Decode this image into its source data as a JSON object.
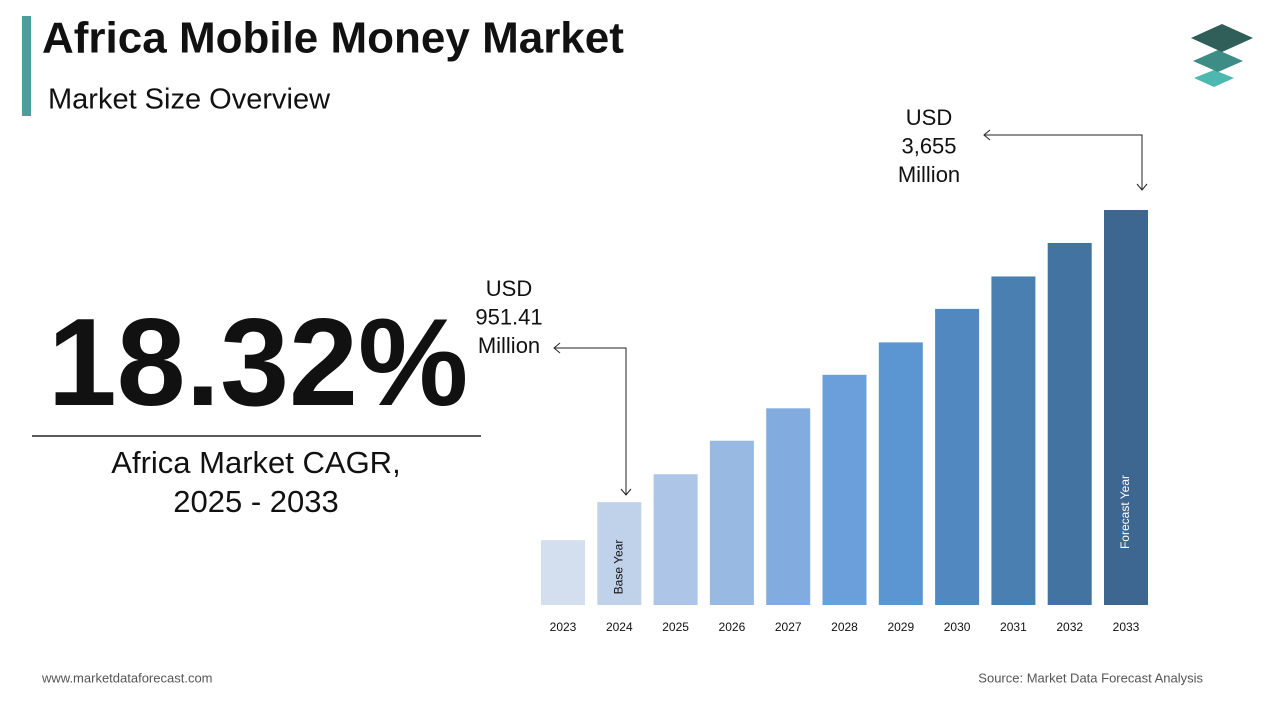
{
  "title": "Africa Mobile Money Market",
  "subtitle": "Market Size Overview",
  "cagr": "18.32%",
  "cagr_label": [
    "Africa Market CAGR,",
    "2025 - 2033"
  ],
  "footer": {
    "website": "www.marketdataforecast.com",
    "source": "Source: Market Data Forecast Analysis"
  },
  "chart_data": {
    "type": "bar",
    "categories": [
      "2023",
      "2024",
      "2025",
      "2026",
      "2027",
      "2028",
      "2029",
      "2030",
      "2031",
      "2032",
      "2033"
    ],
    "values": [
      600,
      951.41,
      1210,
      1520,
      1820,
      2130,
      2430,
      2740,
      3040,
      3350,
      3655
    ],
    "value_labels": [
      null,
      "USD 951.41 Million",
      null,
      null,
      null,
      null,
      null,
      null,
      null,
      null,
      "USD 3,655 Million"
    ],
    "bar_notes": [
      null,
      "Base Year",
      null,
      null,
      null,
      null,
      null,
      null,
      null,
      null,
      "Forecast Year"
    ],
    "colors": [
      "#d3deee",
      "#c0d1ea",
      "#adc5e6",
      "#98b9e1",
      "#82ace0",
      "#6a9fdb",
      "#5b96d2",
      "#5188bf",
      "#4a7fb2",
      "#4373a1",
      "#3d6791"
    ]
  }
}
